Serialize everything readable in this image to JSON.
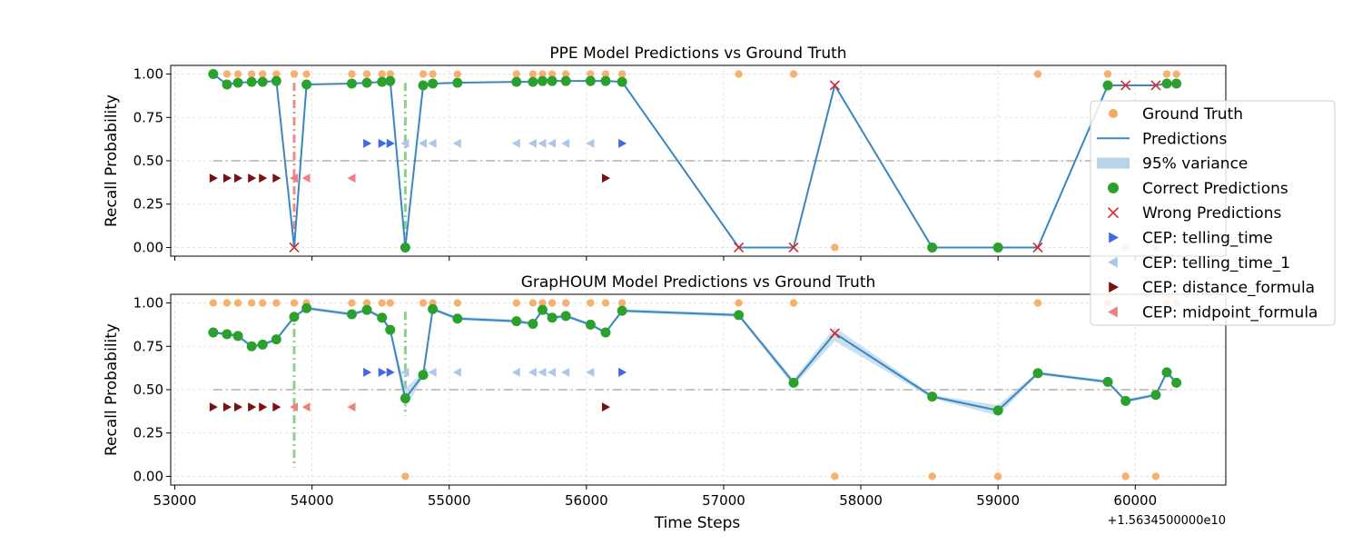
{
  "chart_data": {
    "type": "line",
    "x_offset_label": "+1.5634500000e10",
    "xlabel": "Time Steps",
    "xlim": [
      52970,
      60660
    ],
    "xticks": [
      53000,
      54000,
      55000,
      56000,
      57000,
      58000,
      59000,
      60000
    ],
    "ylim": [
      -0.05,
      1.05
    ],
    "yticks": [
      "0.00",
      "0.25",
      "0.50",
      "0.75",
      "1.00"
    ],
    "threshold": 0.5,
    "grid": true,
    "colors": {
      "ground_truth": "#f5a860",
      "predictions": "#3a86c0",
      "variance": "#b7d4ea",
      "correct": "#2ca02c",
      "wrong": "#d62728",
      "telling_time": "#4169e1",
      "telling_time_1": "#aec7e8",
      "distance_formula": "#7b1010",
      "midpoint_formula": "#f08080",
      "threshold": "#b0b0b0",
      "vline_red": "#e88080",
      "vline_green": "#80cc80"
    },
    "legend": {
      "placement": "right",
      "entries": [
        {
          "label": "Ground Truth",
          "symbol": "gt"
        },
        {
          "label": "Predictions",
          "symbol": "line"
        },
        {
          "label": "95% variance",
          "symbol": "band"
        },
        {
          "label": "Correct Predictions",
          "symbol": "correct"
        },
        {
          "label": "Wrong Predictions",
          "symbol": "wrong"
        },
        {
          "label": "CEP: telling_time",
          "symbol": "telling_time"
        },
        {
          "label": "CEP: telling_time_1",
          "symbol": "telling_time_1"
        },
        {
          "label": "CEP: distance_formula",
          "symbol": "distance_formula"
        },
        {
          "label": "CEP: midpoint_formula",
          "symbol": "midpoint_formula"
        }
      ]
    },
    "ground_truth": {
      "x": [
        53280,
        53380,
        53460,
        53560,
        53640,
        53740,
        53870,
        53960,
        54290,
        54400,
        54510,
        54570,
        54680,
        54810,
        54880,
        55060,
        55490,
        55610,
        55680,
        55750,
        55850,
        56030,
        56140,
        56260,
        57110,
        57510,
        57810,
        58520,
        59000,
        59290,
        59800,
        59930,
        60150,
        60230,
        60300
      ],
      "y": [
        1,
        1,
        1,
        1,
        1,
        1,
        1,
        1,
        1,
        1,
        1,
        1,
        0,
        1,
        1,
        1,
        1,
        1,
        1,
        1,
        1,
        1,
        1,
        1,
        1,
        1,
        0,
        0,
        0,
        1,
        1,
        0,
        0,
        1,
        1
      ]
    },
    "cep_markers": {
      "telling_time": {
        "direction": "right",
        "y": 0.6,
        "x": [
          54400,
          54510,
          54570,
          56260
        ]
      },
      "telling_time_1": {
        "direction": "left",
        "y": 0.6,
        "x": [
          54680,
          54810,
          54880,
          55060,
          55490,
          55610,
          55680,
          55750,
          55850,
          56030
        ]
      },
      "distance_formula": {
        "direction": "right",
        "y": 0.4,
        "x": [
          53280,
          53380,
          53460,
          53560,
          53640,
          53740,
          56140
        ]
      },
      "midpoint_formula": {
        "direction": "left",
        "y": 0.4,
        "x": [
          53870,
          53960,
          54290
        ]
      }
    },
    "subplots": [
      {
        "title": "PPE Model Predictions vs Ground Truth",
        "ylabel": "Recall Probability",
        "vlines": [
          {
            "x": 53870,
            "color": "vline_red",
            "y_range": [
              0.0,
              0.95
            ]
          },
          {
            "x": 54680,
            "color": "vline_green",
            "y_range": [
              0.0,
              0.95
            ]
          }
        ],
        "predictions": {
          "x": [
            53280,
            53380,
            53460,
            53560,
            53640,
            53740,
            53870,
            53960,
            54290,
            54400,
            54510,
            54570,
            54680,
            54810,
            54880,
            55060,
            55490,
            55610,
            55680,
            55750,
            55850,
            56030,
            56140,
            56260,
            57110,
            57510,
            57810,
            58520,
            59000,
            59290,
            59800,
            59930,
            60150,
            60230,
            60300
          ],
          "y": [
            1.0,
            0.94,
            0.95,
            0.955,
            0.955,
            0.96,
            0.0,
            0.94,
            0.945,
            0.95,
            0.955,
            0.96,
            0.0,
            0.935,
            0.945,
            0.95,
            0.955,
            0.955,
            0.96,
            0.96,
            0.96,
            0.96,
            0.96,
            0.955,
            0.0,
            0.0,
            0.935,
            0.0,
            0.0,
            0.0,
            0.935,
            0.935,
            0.935,
            0.945,
            0.945
          ],
          "lower": [],
          "upper": []
        },
        "correct_x": [
          53280,
          53380,
          53460,
          53560,
          53640,
          53740,
          53960,
          54290,
          54400,
          54510,
          54570,
          54680,
          54810,
          54880,
          55060,
          55490,
          55610,
          55680,
          55750,
          55850,
          56030,
          56140,
          56260,
          58520,
          59000,
          59800,
          60230,
          60300
        ],
        "wrong_x": [
          53870,
          57110,
          57510,
          57810,
          59290,
          59930,
          60150
        ]
      },
      {
        "title": "GrapHOUM Model Predictions vs Ground Truth",
        "ylabel": "Recall Probability",
        "vlines": [
          {
            "x": 53870,
            "color": "vline_green",
            "y_range": [
              0.05,
              0.95
            ]
          },
          {
            "x": 54680,
            "color": "vline_green",
            "y_range": [
              0.35,
              0.95
            ]
          }
        ],
        "predictions": {
          "x": [
            53280,
            53380,
            53460,
            53560,
            53640,
            53740,
            53870,
            53960,
            54290,
            54400,
            54510,
            54570,
            54680,
            54810,
            54880,
            55060,
            55490,
            55610,
            55680,
            55750,
            55850,
            56030,
            56140,
            56260,
            57110,
            57510,
            57810,
            58520,
            59000,
            59290,
            59800,
            59930,
            60150,
            60230,
            60300
          ],
          "y": [
            0.83,
            0.82,
            0.81,
            0.75,
            0.76,
            0.79,
            0.92,
            0.97,
            0.935,
            0.96,
            0.915,
            0.845,
            0.45,
            0.585,
            0.965,
            0.91,
            0.895,
            0.88,
            0.96,
            0.915,
            0.925,
            0.875,
            0.83,
            0.955,
            0.93,
            0.54,
            0.825,
            0.46,
            0.38,
            0.595,
            0.545,
            0.435,
            0.47,
            0.6,
            0.54
          ],
          "lower": [
            0.82,
            0.81,
            0.8,
            0.74,
            0.75,
            0.78,
            0.91,
            0.96,
            0.925,
            0.95,
            0.905,
            0.83,
            0.39,
            0.57,
            0.955,
            0.9,
            0.885,
            0.87,
            0.95,
            0.905,
            0.915,
            0.865,
            0.82,
            0.945,
            0.92,
            0.52,
            0.78,
            0.45,
            0.35,
            0.585,
            0.535,
            0.425,
            0.46,
            0.585,
            0.53
          ],
          "upper": [
            0.84,
            0.83,
            0.82,
            0.76,
            0.77,
            0.8,
            0.93,
            0.98,
            0.945,
            0.97,
            0.925,
            0.86,
            0.51,
            0.6,
            0.975,
            0.92,
            0.905,
            0.89,
            0.97,
            0.925,
            0.935,
            0.885,
            0.84,
            0.965,
            0.94,
            0.56,
            0.86,
            0.47,
            0.41,
            0.605,
            0.555,
            0.445,
            0.48,
            0.615,
            0.55
          ]
        },
        "correct_x": [
          53280,
          53380,
          53460,
          53560,
          53640,
          53740,
          53870,
          53960,
          54290,
          54400,
          54510,
          54570,
          54680,
          54810,
          54880,
          55060,
          55490,
          55610,
          55680,
          55750,
          55850,
          56030,
          56140,
          56260,
          57110,
          57510,
          58520,
          59000,
          59290,
          59800,
          59930,
          60150,
          60230,
          60300
        ],
        "wrong_x": [
          57810
        ]
      }
    ]
  }
}
